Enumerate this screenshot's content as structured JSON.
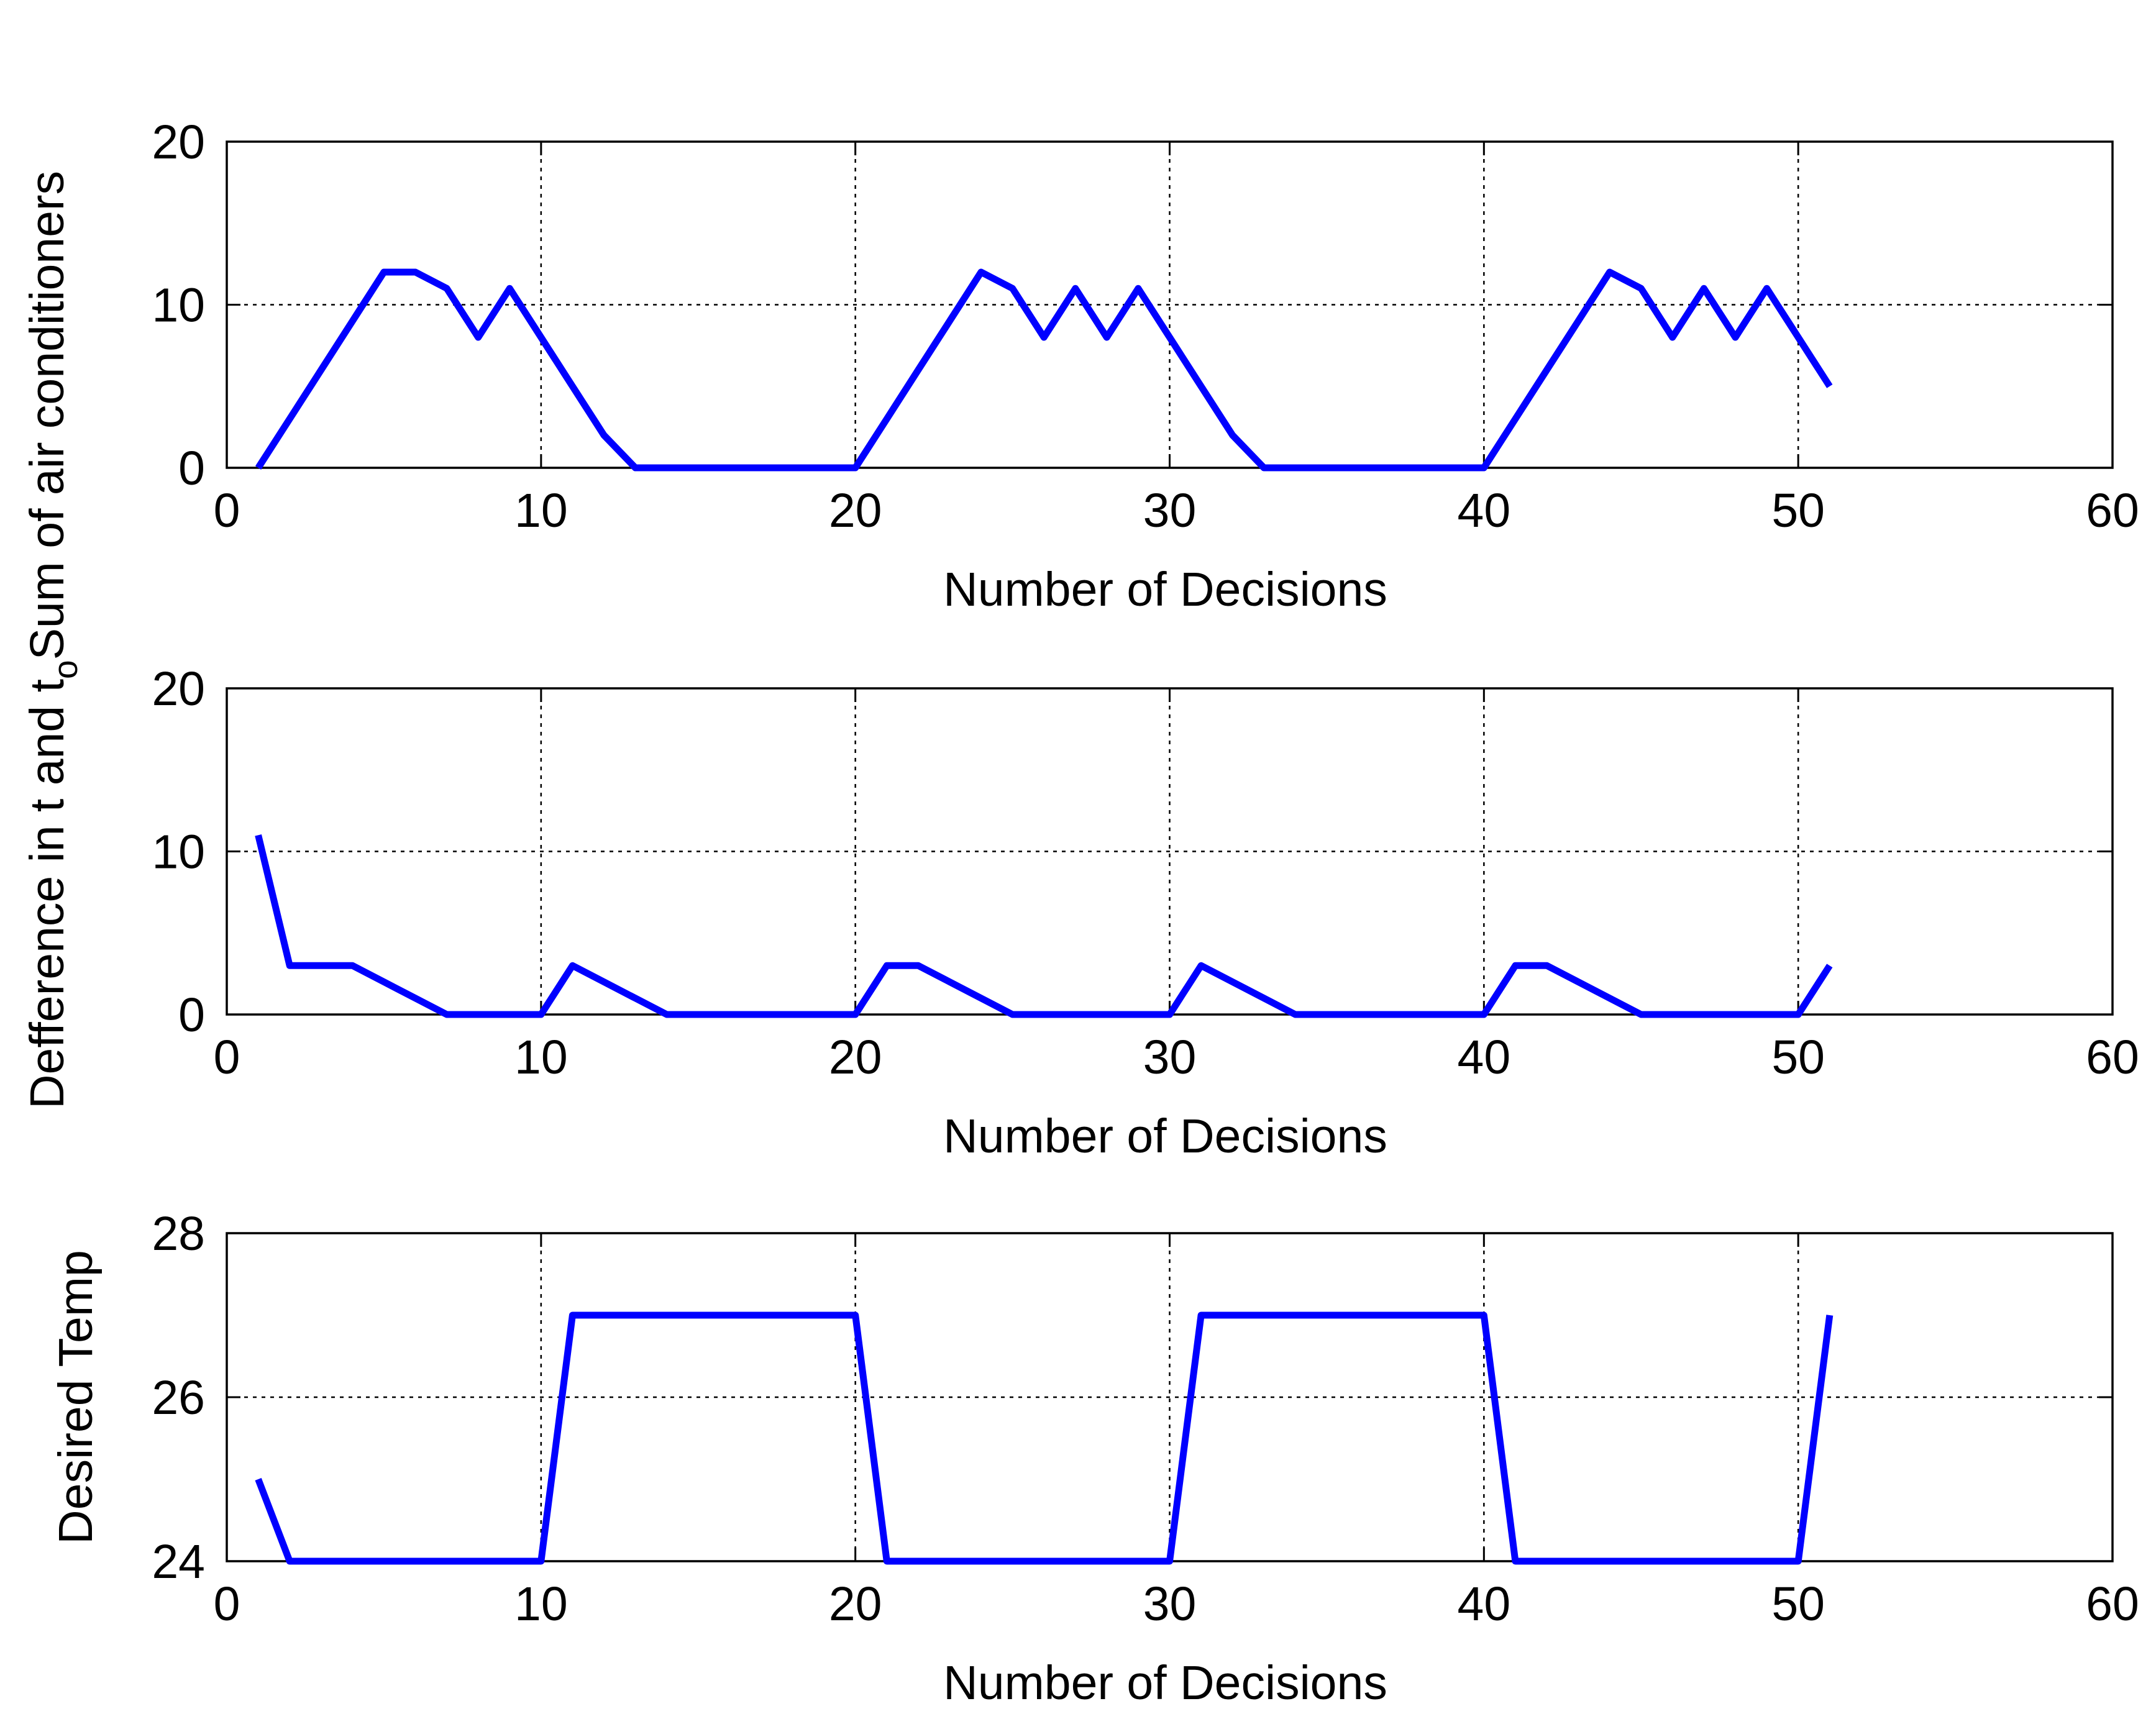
{
  "chart_data": [
    {
      "type": "line",
      "xlabel": "Number of Decisions",
      "ylabel": "Sum of air conditioners",
      "xlim": [
        0,
        60
      ],
      "ylim": [
        0,
        20
      ],
      "xticks": [
        "0",
        "10",
        "20",
        "30",
        "40",
        "50",
        "60"
      ],
      "yticks": [
        "0",
        "10",
        "20"
      ],
      "grid": true,
      "line_color": "#0000ff",
      "x": [
        1,
        2,
        3,
        4,
        5,
        6,
        7,
        8,
        9,
        10,
        11,
        12,
        13,
        14,
        15,
        16,
        17,
        18,
        19,
        20,
        21,
        22,
        23,
        24,
        25,
        26,
        27,
        28,
        29,
        30,
        31,
        32,
        33,
        34,
        35,
        36,
        37,
        38,
        39,
        40,
        41,
        42,
        43,
        44,
        45,
        46,
        47,
        48,
        49,
        50,
        51
      ],
      "values": [
        0,
        3,
        6,
        9,
        12,
        12,
        11,
        8,
        11,
        8,
        5,
        2,
        0,
        0,
        0,
        0,
        0,
        0,
        0,
        0,
        3,
        6,
        9,
        12,
        11,
        8,
        11,
        8,
        11,
        8,
        5,
        2,
        0,
        0,
        0,
        0,
        0,
        0,
        0,
        0,
        3,
        6,
        9,
        12,
        11,
        8,
        11,
        8,
        11,
        8,
        5
      ]
    },
    {
      "type": "line",
      "xlabel": "Number of Decisions",
      "ylabel": "Defference in t and t",
      "ylabel_subscript": "o",
      "xlim": [
        0,
        60
      ],
      "ylim": [
        0,
        20
      ],
      "xticks": [
        "0",
        "10",
        "20",
        "30",
        "40",
        "50",
        "60"
      ],
      "yticks": [
        "0",
        "10",
        "20"
      ],
      "grid": true,
      "line_color": "#0000ff",
      "x": [
        1,
        2,
        3,
        4,
        5,
        6,
        7,
        8,
        9,
        10,
        11,
        12,
        13,
        14,
        15,
        16,
        17,
        18,
        19,
        20,
        21,
        22,
        23,
        24,
        25,
        26,
        27,
        28,
        29,
        30,
        31,
        32,
        33,
        34,
        35,
        36,
        37,
        38,
        39,
        40,
        41,
        42,
        43,
        44,
        45,
        46,
        47,
        48,
        49,
        50,
        51
      ],
      "values": [
        11,
        3,
        3,
        3,
        2,
        1,
        0,
        0,
        0,
        0,
        3,
        2,
        1,
        0,
        0,
        0,
        0,
        0,
        0,
        0,
        3,
        3,
        2,
        1,
        0,
        0,
        0,
        0,
        0,
        0,
        3,
        2,
        1,
        0,
        0,
        0,
        0,
        0,
        0,
        0,
        3,
        3,
        2,
        1,
        0,
        0,
        0,
        0,
        0,
        0,
        3
      ]
    },
    {
      "type": "line",
      "xlabel": "Number of Decisions",
      "ylabel": "Desired Temp",
      "xlim": [
        0,
        60
      ],
      "ylim": [
        24,
        28
      ],
      "xticks": [
        "0",
        "10",
        "20",
        "30",
        "40",
        "50",
        "60"
      ],
      "yticks": [
        "24",
        "26",
        "28"
      ],
      "grid": true,
      "line_color": "#0000ff",
      "x": [
        1,
        2,
        3,
        4,
        5,
        6,
        7,
        8,
        9,
        10,
        11,
        12,
        13,
        14,
        15,
        16,
        17,
        18,
        19,
        20,
        21,
        22,
        23,
        24,
        25,
        26,
        27,
        28,
        29,
        30,
        31,
        32,
        33,
        34,
        35,
        36,
        37,
        38,
        39,
        40,
        41,
        42,
        43,
        44,
        45,
        46,
        47,
        48,
        49,
        50,
        51
      ],
      "values": [
        25,
        24,
        24,
        24,
        24,
        24,
        24,
        24,
        24,
        24,
        27,
        27,
        27,
        27,
        27,
        27,
        27,
        27,
        27,
        27,
        24,
        24,
        24,
        24,
        24,
        24,
        24,
        24,
        24,
        24,
        27,
        27,
        27,
        27,
        27,
        27,
        27,
        27,
        27,
        27,
        24,
        24,
        24,
        24,
        24,
        24,
        24,
        24,
        24,
        24,
        27
      ]
    }
  ]
}
